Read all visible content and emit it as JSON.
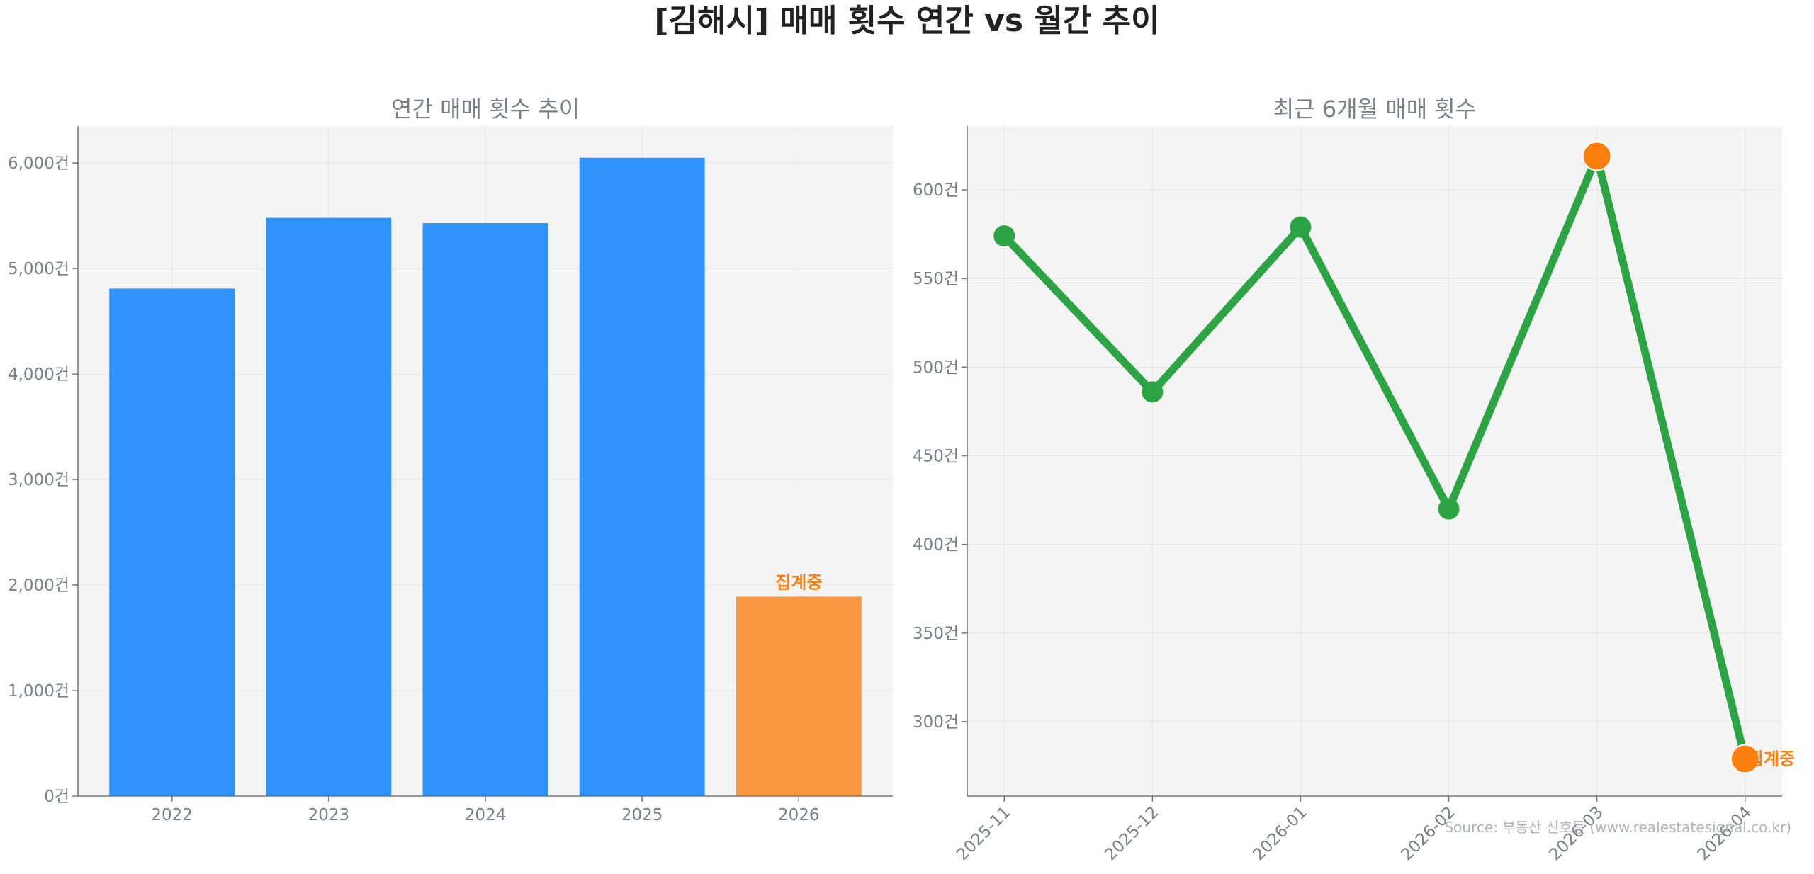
{
  "title": "[김해시] 매매 횟수 연간 vs 월간 추이",
  "source": "Source: 부동산 신호등 (www.realestatesignal.co.kr)",
  "colors": {
    "annual_bar": "#3093fb",
    "annual_bar_partial": "#f99840",
    "line": "#2ca444",
    "highlight_marker": "#ff7f0e",
    "note_text": "#ff7f0e",
    "plot_bg": "#f4f4f4",
    "grid": "#e4e4e4",
    "axis": "#777777"
  },
  "chart_data": [
    {
      "type": "bar",
      "title": "연간 매매 횟수 추이",
      "categories": [
        "2022",
        "2023",
        "2024",
        "2025",
        "2026"
      ],
      "values": [
        4810,
        5480,
        5430,
        6050,
        1890
      ],
      "partial": [
        false,
        false,
        false,
        false,
        true
      ],
      "partial_label": "집계중",
      "ylim": [
        0,
        6350
      ],
      "yticks": [
        0,
        1000,
        2000,
        3000,
        4000,
        5000,
        6000
      ],
      "ytick_labels": [
        "0건",
        "1,000건",
        "2,000건",
        "3,000건",
        "4,000건",
        "5,000건",
        "6,000건"
      ],
      "grid": true
    },
    {
      "type": "line",
      "title": "최근 6개월 매매 횟수",
      "x": [
        "2025-11",
        "2025-12",
        "2026-01",
        "2026-02",
        "2026-03",
        "2026-04"
      ],
      "values": [
        574,
        486,
        579,
        420,
        619,
        279
      ],
      "highlight": [
        false,
        false,
        false,
        false,
        true,
        true
      ],
      "partial": [
        false,
        false,
        false,
        false,
        false,
        true
      ],
      "partial_label": "집계중",
      "ylim": [
        258,
        636
      ],
      "yticks": [
        300,
        350,
        400,
        450,
        500,
        550,
        600
      ],
      "ytick_labels": [
        "300건",
        "350건",
        "400건",
        "450건",
        "500건",
        "550건",
        "600건"
      ],
      "grid": true
    }
  ]
}
